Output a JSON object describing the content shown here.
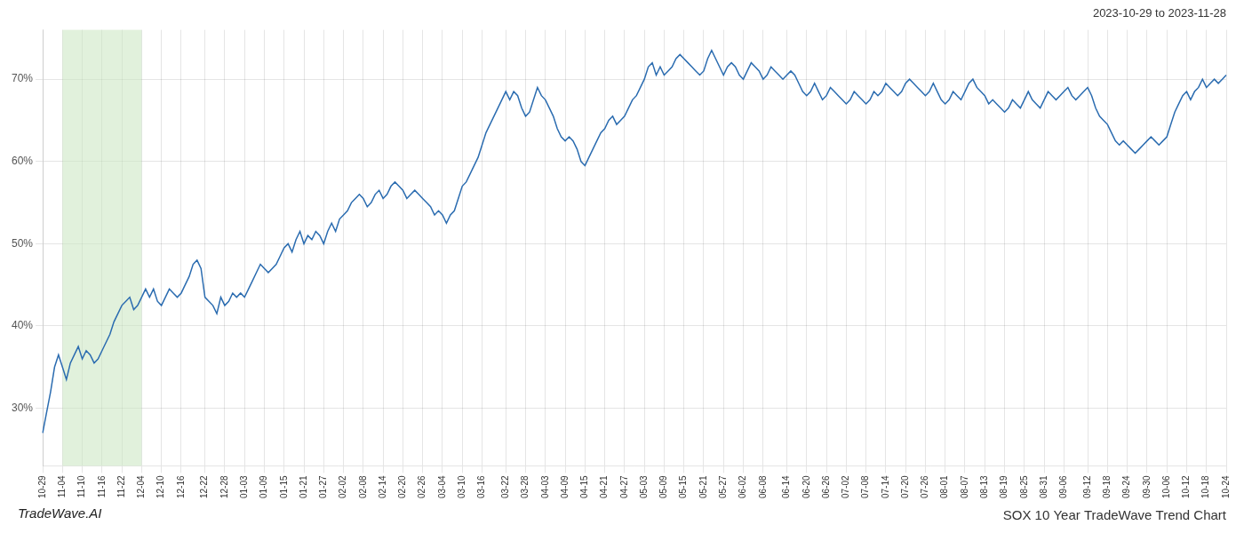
{
  "chart_data": {
    "type": "line",
    "title": "SOX 10 Year TradeWave Trend Chart",
    "subtitle": "2023-10-29 to 2023-11-28",
    "annotations": [
      "TradeWave.AI"
    ],
    "color": "#2b6cb0",
    "grid": true,
    "ylim": [
      23,
      76
    ],
    "yticks": [
      {
        "value": 30,
        "label": "30%"
      },
      {
        "value": 40,
        "label": "40%"
      },
      {
        "value": 50,
        "label": "50%"
      },
      {
        "value": 60,
        "label": "60%"
      },
      {
        "value": 70,
        "label": "70%"
      }
    ],
    "highlight": {
      "from": "11-04",
      "to": "12-04",
      "color": "#c8e6c0"
    },
    "categories": [
      "10-29",
      null,
      null,
      null,
      null,
      "11-04",
      null,
      null,
      null,
      null,
      "11-10",
      null,
      null,
      null,
      null,
      "11-16",
      null,
      null,
      null,
      null,
      "11-22",
      null,
      null,
      null,
      null,
      "12-04",
      null,
      null,
      null,
      null,
      "12-10",
      null,
      null,
      null,
      null,
      "12-16",
      null,
      null,
      null,
      null,
      null,
      "12-22",
      null,
      null,
      null,
      null,
      "12-28",
      null,
      null,
      null,
      null,
      "01-03",
      null,
      null,
      null,
      null,
      "01-09",
      null,
      null,
      null,
      null,
      "01-15",
      null,
      null,
      null,
      null,
      "01-21",
      null,
      null,
      null,
      null,
      "01-27",
      null,
      null,
      null,
      null,
      "02-02",
      null,
      null,
      null,
      null,
      "02-08",
      null,
      null,
      null,
      null,
      "02-14",
      null,
      null,
      null,
      null,
      "02-20",
      null,
      null,
      null,
      null,
      "02-26",
      null,
      null,
      null,
      null,
      "03-04",
      null,
      null,
      null,
      null,
      "03-10",
      null,
      null,
      null,
      null,
      "03-16",
      null,
      null,
      null,
      null,
      null,
      "03-22",
      null,
      null,
      null,
      null,
      "03-28",
      null,
      null,
      null,
      null,
      "04-03",
      null,
      null,
      null,
      null,
      "04-09",
      null,
      null,
      null,
      null,
      "04-15",
      null,
      null,
      null,
      null,
      "04-21",
      null,
      null,
      null,
      null,
      "04-27",
      null,
      null,
      null,
      null,
      "05-03",
      null,
      null,
      null,
      null,
      "05-09",
      null,
      null,
      null,
      null,
      "05-15",
      null,
      null,
      null,
      null,
      "05-21",
      null,
      null,
      null,
      null,
      "05-27",
      null,
      null,
      null,
      null,
      "06-02",
      null,
      null,
      null,
      null,
      "06-08",
      null,
      null,
      null,
      null,
      null,
      "06-14",
      null,
      null,
      null,
      null,
      "06-20",
      null,
      null,
      null,
      null,
      "06-26",
      null,
      null,
      null,
      null,
      "07-02",
      null,
      null,
      null,
      null,
      "07-08",
      null,
      null,
      null,
      null,
      "07-14",
      null,
      null,
      null,
      null,
      "07-20",
      null,
      null,
      null,
      null,
      "07-26",
      null,
      null,
      null,
      null,
      "08-01",
      null,
      null,
      null,
      null,
      "08-07",
      null,
      null,
      null,
      null,
      "08-13",
      null,
      null,
      null,
      null,
      "08-19",
      null,
      null,
      null,
      null,
      "08-25",
      null,
      null,
      null,
      null,
      "08-31",
      null,
      null,
      null,
      null,
      "09-06",
      null,
      null,
      null,
      null,
      null,
      "09-12",
      null,
      null,
      null,
      null,
      "09-18",
      null,
      null,
      null,
      null,
      "09-24",
      null,
      null,
      null,
      null,
      "09-30",
      null,
      null,
      null,
      null,
      "10-06",
      null,
      null,
      null,
      null,
      "10-12",
      null,
      null,
      null,
      null,
      "10-18",
      null,
      null,
      null,
      null,
      "10-24"
    ],
    "values": [
      27.0,
      29.5,
      32.0,
      35.0,
      36.5,
      35.0,
      33.5,
      35.5,
      36.5,
      37.5,
      36.0,
      37.0,
      36.5,
      35.5,
      36.0,
      37.0,
      38.0,
      39.0,
      40.5,
      41.5,
      42.5,
      43.0,
      43.5,
      42.0,
      42.5,
      43.5,
      44.5,
      43.5,
      44.5,
      43.0,
      42.5,
      43.5,
      44.5,
      44.0,
      43.5,
      44.0,
      45.0,
      46.0,
      47.5,
      48.0,
      47.0,
      43.5,
      43.0,
      42.5,
      41.5,
      43.5,
      42.5,
      43.0,
      44.0,
      43.5,
      44.0,
      43.5,
      44.5,
      45.5,
      46.5,
      47.5,
      47.0,
      46.5,
      47.0,
      47.5,
      48.5,
      49.5,
      50.0,
      49.0,
      50.5,
      51.5,
      50.0,
      51.0,
      50.5,
      51.5,
      51.0,
      50.0,
      51.5,
      52.5,
      51.5,
      53.0,
      53.5,
      54.0,
      55.0,
      55.5,
      56.0,
      55.5,
      54.5,
      55.0,
      56.0,
      56.5,
      55.5,
      56.0,
      57.0,
      57.5,
      57.0,
      56.5,
      55.5,
      56.0,
      56.5,
      56.0,
      55.5,
      55.0,
      54.5,
      53.5,
      54.0,
      53.5,
      52.5,
      53.5,
      54.0,
      55.5,
      57.0,
      57.5,
      58.5,
      59.5,
      60.5,
      62.0,
      63.5,
      64.5,
      65.5,
      66.5,
      67.5,
      68.5,
      67.5,
      68.5,
      68.0,
      66.5,
      65.5,
      66.0,
      67.5,
      69.0,
      68.0,
      67.5,
      66.5,
      65.5,
      64.0,
      63.0,
      62.5,
      63.0,
      62.5,
      61.5,
      60.0,
      59.5,
      60.5,
      61.5,
      62.5,
      63.5,
      64.0,
      65.0,
      65.5,
      64.5,
      65.0,
      65.5,
      66.5,
      67.5,
      68.0,
      69.0,
      70.0,
      71.5,
      72.0,
      70.5,
      71.5,
      70.5,
      71.0,
      71.5,
      72.5,
      73.0,
      72.5,
      72.0,
      71.5,
      71.0,
      70.5,
      71.0,
      72.5,
      73.5,
      72.5,
      71.5,
      70.5,
      71.5,
      72.0,
      71.5,
      70.5,
      70.0,
      71.0,
      72.0,
      71.5,
      71.0,
      70.0,
      70.5,
      71.5,
      71.0,
      70.5,
      70.0,
      70.5,
      71.0,
      70.5,
      69.5,
      68.5,
      68.0,
      68.5,
      69.5,
      68.5,
      67.5,
      68.0,
      69.0,
      68.5,
      68.0,
      67.5,
      67.0,
      67.5,
      68.5,
      68.0,
      67.5,
      67.0,
      67.5,
      68.5,
      68.0,
      68.5,
      69.5,
      69.0,
      68.5,
      68.0,
      68.5,
      69.5,
      70.0,
      69.5,
      69.0,
      68.5,
      68.0,
      68.5,
      69.5,
      68.5,
      67.5,
      67.0,
      67.5,
      68.5,
      68.0,
      67.5,
      68.5,
      69.5,
      70.0,
      69.0,
      68.5,
      68.0,
      67.0,
      67.5,
      67.0,
      66.5,
      66.0,
      66.5,
      67.5,
      67.0,
      66.5,
      67.5,
      68.5,
      67.5,
      67.0,
      66.5,
      67.5,
      68.5,
      68.0,
      67.5,
      68.0,
      68.5,
      69.0,
      68.0,
      67.5,
      68.0,
      68.5,
      69.0,
      68.0,
      66.5,
      65.5,
      65.0,
      64.5,
      63.5,
      62.5,
      62.0,
      62.5,
      62.0,
      61.5,
      61.0,
      61.5,
      62.0,
      62.5,
      63.0,
      62.5,
      62.0,
      62.5,
      63.0,
      64.5,
      66.0,
      67.0,
      68.0,
      68.5,
      67.5,
      68.5,
      69.0,
      70.0,
      69.0,
      69.5,
      70.0,
      69.5,
      70.0,
      70.5
    ]
  }
}
